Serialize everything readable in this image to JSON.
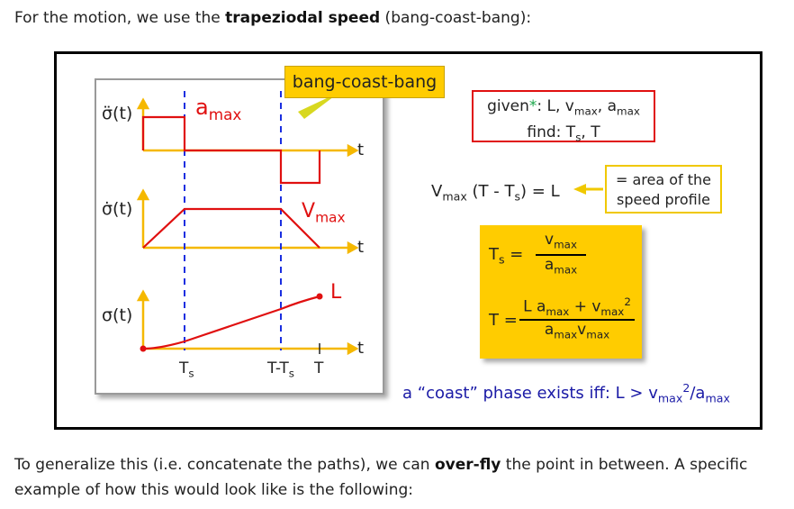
{
  "intro": {
    "before": "For the motion, we use the ",
    "bold": "trapeziodal speed",
    "after": " (bang-coast-bang):"
  },
  "slide": {
    "callout": "bang-coast-bang",
    "plots": {
      "accel_label": "σ̈(t)",
      "vel_label": "σ̇(t)",
      "pos_label": "σ(t)",
      "t_label": "t",
      "amax_label": "a",
      "amax_sub": "max",
      "vmax_label": "V",
      "vmax_sub": "max",
      "L_label": "L",
      "ticks": {
        "ts": "T",
        "ts_sub": "s",
        "tmts": "T-T",
        "tmts_sub": "s",
        "T": "T"
      }
    },
    "given": {
      "line1_prefix": "given",
      "star": "*",
      "line1_rest": ": L, v",
      "sub1": "max",
      "line1_mid": ", a",
      "sub2": "max",
      "line2_prefix": "find: T",
      "line2_sub": "s",
      "line2_rest": ", T"
    },
    "equation": {
      "v": "V",
      "vsub": "max",
      "rest_a": " (T - T",
      "tsub": "s",
      "rest_b": ") = L"
    },
    "area_note": {
      "line1": "= area of the",
      "line2": "speed profile"
    },
    "formulas": {
      "ts_lhs": "T",
      "ts_lhs_sub": "s",
      "eq": "=",
      "ts_num": "v",
      "ts_num_sub": "max",
      "ts_den": "a",
      "ts_den_sub": "max",
      "t_lhs": "T",
      "t_num_a": "L a",
      "t_num_a_sub": "max",
      "t_num_b": " + v",
      "t_num_b_sub": "max",
      "t_num_sup": "2",
      "t_den_a": "a",
      "t_den_a_sub": "max",
      "t_den_b": "v",
      "t_den_b_sub": "max"
    },
    "coast": {
      "text": "a “coast” phase exists iff: L > v",
      "sub1": "max",
      "sup": "2",
      "mid": "/a",
      "sub2": "max"
    }
  },
  "outro": {
    "before": "To generalize this (i.e. concatenate the paths), we can ",
    "bold": "over-fly",
    "after": " the point in between. A specific example of how this would look like is the following:"
  },
  "colors": {
    "axis": "#f5b800",
    "curve": "#e01010",
    "dash": "#1a2ee0",
    "callout": "#ffcc00",
    "coast": "#1a1aa6"
  }
}
